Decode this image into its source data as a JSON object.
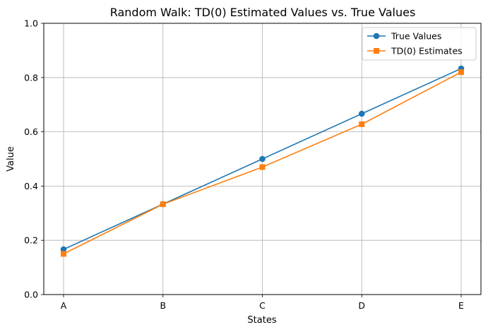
{
  "chart_data": {
    "type": "line",
    "title": "Random Walk: TD(0) Estimated Values vs. True Values",
    "xlabel": "States",
    "ylabel": "Value",
    "categories": [
      "A",
      "B",
      "C",
      "D",
      "E"
    ],
    "ylim": [
      0,
      1
    ],
    "yticks": [
      "0.0",
      "0.2",
      "0.4",
      "0.6",
      "0.8",
      "1.0"
    ],
    "grid": true,
    "legend_position": "top-right",
    "series": [
      {
        "name": "True Values",
        "values": [
          0.1667,
          0.3333,
          0.5,
          0.6667,
          0.8333
        ],
        "color": "#1f77b4",
        "marker": "circle"
      },
      {
        "name": "TD(0) Estimates",
        "values": [
          0.15,
          0.333,
          0.47,
          0.628,
          0.82
        ],
        "color": "#ff7f0e",
        "marker": "square"
      }
    ]
  }
}
